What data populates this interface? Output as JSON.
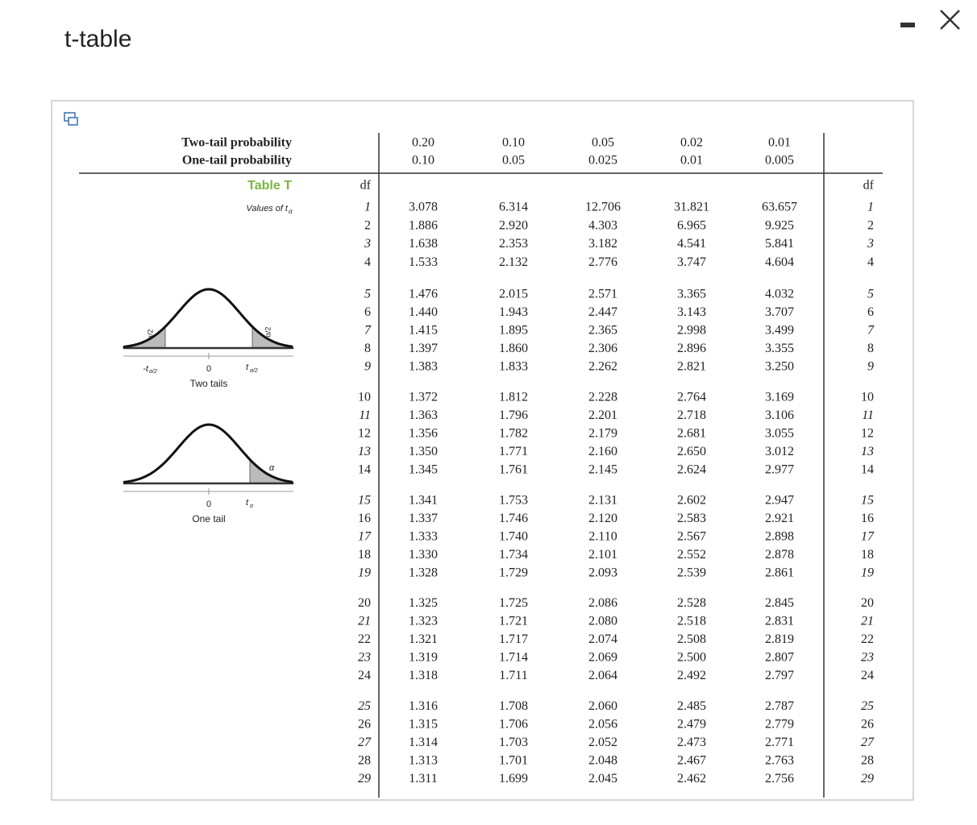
{
  "window": {
    "title": "t-table"
  },
  "header": {
    "two_tail": {
      "label": "Two-tail probability",
      "values": [
        "0.20",
        "0.10",
        "0.05",
        "0.02",
        "0.01"
      ]
    },
    "one_tail": {
      "label": "One-tail probability",
      "values": [
        "0.10",
        "0.05",
        "0.025",
        "0.01",
        "0.005"
      ]
    },
    "table_name": "Table T",
    "subtitle": "Values of t",
    "subtitle_sub": "α",
    "df": "df"
  },
  "figures": {
    "two_tails": {
      "tail_label": "α/2",
      "neg_t": "-t",
      "zero": "0",
      "pos_t": "t",
      "sub": "α/2",
      "caption": "Two tails"
    },
    "one_tail": {
      "tail_label": "α",
      "zero": "0",
      "pos_t": "t",
      "sub": "α",
      "caption": "One tail"
    }
  },
  "table": {
    "rows": [
      [
        "1",
        "3.078",
        "6.314",
        "12.706",
        "31.821",
        "63.657"
      ],
      [
        "2",
        "1.886",
        "2.920",
        "4.303",
        "6.965",
        "9.925"
      ],
      [
        "3",
        "1.638",
        "2.353",
        "3.182",
        "4.541",
        "5.841"
      ],
      [
        "4",
        "1.533",
        "2.132",
        "2.776",
        "3.747",
        "4.604"
      ],
      [
        "5",
        "1.476",
        "2.015",
        "2.571",
        "3.365",
        "4.032"
      ],
      [
        "6",
        "1.440",
        "1.943",
        "2.447",
        "3.143",
        "3.707"
      ],
      [
        "7",
        "1.415",
        "1.895",
        "2.365",
        "2.998",
        "3.499"
      ],
      [
        "8",
        "1.397",
        "1.860",
        "2.306",
        "2.896",
        "3.355"
      ],
      [
        "9",
        "1.383",
        "1.833",
        "2.262",
        "2.821",
        "3.250"
      ],
      [
        "10",
        "1.372",
        "1.812",
        "2.228",
        "2.764",
        "3.169"
      ],
      [
        "11",
        "1.363",
        "1.796",
        "2.201",
        "2.718",
        "3.106"
      ],
      [
        "12",
        "1.356",
        "1.782",
        "2.179",
        "2.681",
        "3.055"
      ],
      [
        "13",
        "1.350",
        "1.771",
        "2.160",
        "2.650",
        "3.012"
      ],
      [
        "14",
        "1.345",
        "1.761",
        "2.145",
        "2.624",
        "2.977"
      ],
      [
        "15",
        "1.341",
        "1.753",
        "2.131",
        "2.602",
        "2.947"
      ],
      [
        "16",
        "1.337",
        "1.746",
        "2.120",
        "2.583",
        "2.921"
      ],
      [
        "17",
        "1.333",
        "1.740",
        "2.110",
        "2.567",
        "2.898"
      ],
      [
        "18",
        "1.330",
        "1.734",
        "2.101",
        "2.552",
        "2.878"
      ],
      [
        "19",
        "1.328",
        "1.729",
        "2.093",
        "2.539",
        "2.861"
      ],
      [
        "20",
        "1.325",
        "1.725",
        "2.086",
        "2.528",
        "2.845"
      ],
      [
        "21",
        "1.323",
        "1.721",
        "2.080",
        "2.518",
        "2.831"
      ],
      [
        "22",
        "1.321",
        "1.717",
        "2.074",
        "2.508",
        "2.819"
      ],
      [
        "23",
        "1.319",
        "1.714",
        "2.069",
        "2.500",
        "2.807"
      ],
      [
        "24",
        "1.318",
        "1.711",
        "2.064",
        "2.492",
        "2.797"
      ],
      [
        "25",
        "1.316",
        "1.708",
        "2.060",
        "2.485",
        "2.787"
      ],
      [
        "26",
        "1.315",
        "1.706",
        "2.056",
        "2.479",
        "2.779"
      ],
      [
        "27",
        "1.314",
        "1.703",
        "2.052",
        "2.473",
        "2.771"
      ],
      [
        "28",
        "1.313",
        "1.701",
        "2.048",
        "2.467",
        "2.763"
      ],
      [
        "29",
        "1.311",
        "1.699",
        "2.045",
        "2.462",
        "2.756"
      ]
    ]
  }
}
